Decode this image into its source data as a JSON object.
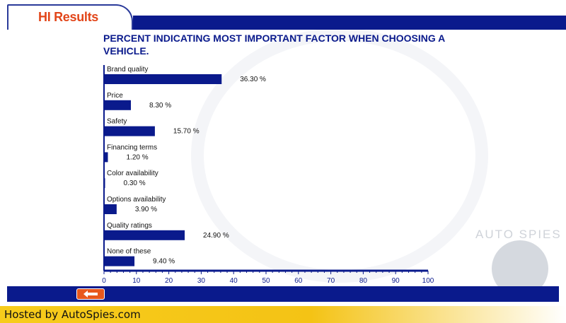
{
  "header": {
    "tab_title": "HI Results"
  },
  "brand_watermark": "AUTO SPIES",
  "footer": {
    "hosted_by": "Hosted by AutoSpies.com"
  },
  "colors": {
    "header_blue": "#0a1a8c",
    "tab_text": "#e2461a",
    "bar": "#0a1a8c",
    "hosted_bar": "#f7cc1c",
    "back_button": "#e8581c"
  },
  "icons": {
    "back": "left-arrow-icon"
  },
  "chart_data": {
    "type": "bar",
    "orientation": "horizontal",
    "title": "PERCENT INDICATING MOST IMPORTANT FACTOR WHEN CHOOSING A VEHICLE.",
    "categories": [
      "Brand quality",
      "Price",
      "Safety",
      "Financing terms",
      "Color availability",
      "Options availability",
      "Quality ratings",
      "None of these"
    ],
    "values": [
      36.3,
      8.3,
      15.7,
      1.2,
      0.3,
      3.9,
      24.9,
      9.4
    ],
    "value_labels": [
      "36.30 %",
      "8.30 %",
      "15.70 %",
      "1.20 %",
      "0.30 %",
      "3.90 %",
      "24.90 %",
      "9.40 %"
    ],
    "x_ticks": [
      "0",
      "10",
      "20",
      "30",
      "40",
      "50",
      "60",
      "70",
      "80",
      "90",
      "100"
    ],
    "xlim": [
      0,
      100
    ],
    "grid": false,
    "legend": "none"
  }
}
